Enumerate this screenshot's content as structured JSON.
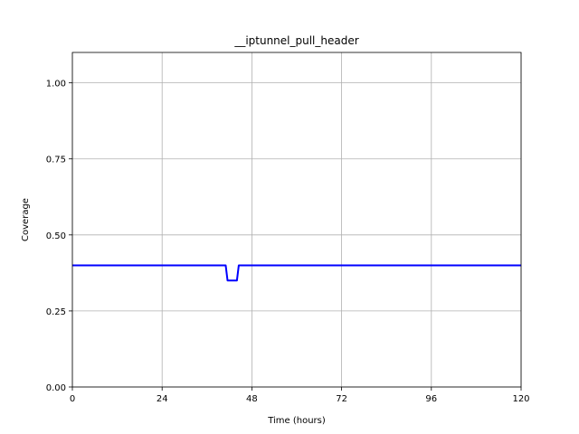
{
  "chart_data": {
    "type": "line",
    "title": "__iptunnel_pull_header",
    "xlabel": "Time (hours)",
    "ylabel": "Coverage",
    "xlim": [
      0,
      120
    ],
    "ylim": [
      0,
      1.1
    ],
    "xticks": [
      0,
      24,
      48,
      72,
      96,
      120
    ],
    "xtick_labels": [
      "0",
      "24",
      "48",
      "72",
      "96",
      "120"
    ],
    "yticks": [
      0,
      0.25,
      0.5,
      0.75,
      1.0
    ],
    "ytick_labels": [
      "0.00",
      "0.25",
      "0.50",
      "0.75",
      "1.00"
    ],
    "grid": true,
    "series": [
      {
        "color": "#0000ff",
        "x": [
          0,
          41,
          41.5,
          44,
          44.5,
          120
        ],
        "y": [
          0.4,
          0.4,
          0.35,
          0.35,
          0.4,
          0.4
        ]
      }
    ]
  }
}
